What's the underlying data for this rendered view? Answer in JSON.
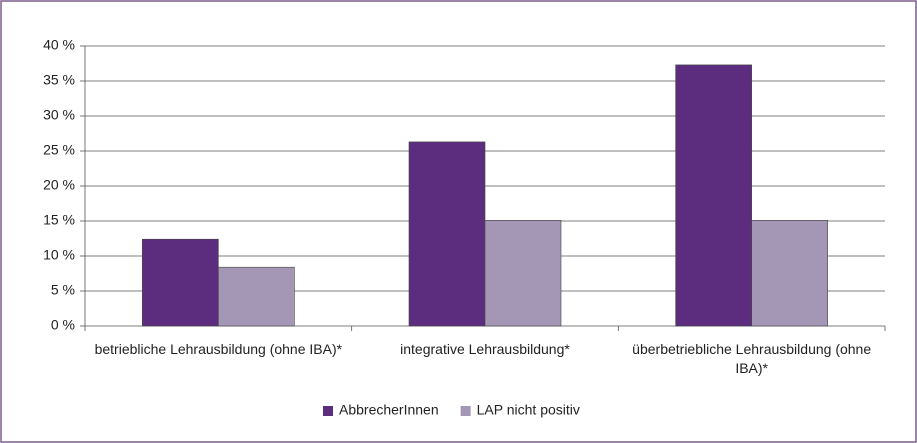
{
  "chart_data": {
    "type": "bar",
    "categories": [
      "betriebliche Lehrausbildung (ohne IBA)*",
      "integrative Lehrausbildung*",
      "überbetriebliche Lehrausbildung (ohne IBA)*"
    ],
    "series": [
      {
        "name": "AbbrecherInnen",
        "color": "#5c2d7e",
        "values": [
          12.4,
          26.3,
          37.3
        ]
      },
      {
        "name": "LAP nicht positiv",
        "color": "#a397b5",
        "values": [
          8.4,
          15.1,
          15.1
        ]
      }
    ],
    "ylim": [
      0,
      40
    ],
    "yticks": [
      {
        "value": 0,
        "label": "0 %"
      },
      {
        "value": 5,
        "label": "5 %"
      },
      {
        "value": 10,
        "label": "10 %"
      },
      {
        "value": 15,
        "label": "15 %"
      },
      {
        "value": 20,
        "label": "20 %"
      },
      {
        "value": 25,
        "label": "25 %"
      },
      {
        "value": 30,
        "label": "30 %"
      },
      {
        "value": 35,
        "label": "35 %"
      },
      {
        "value": 40,
        "label": "40 %"
      }
    ],
    "grid": true,
    "legend": "bottom"
  }
}
